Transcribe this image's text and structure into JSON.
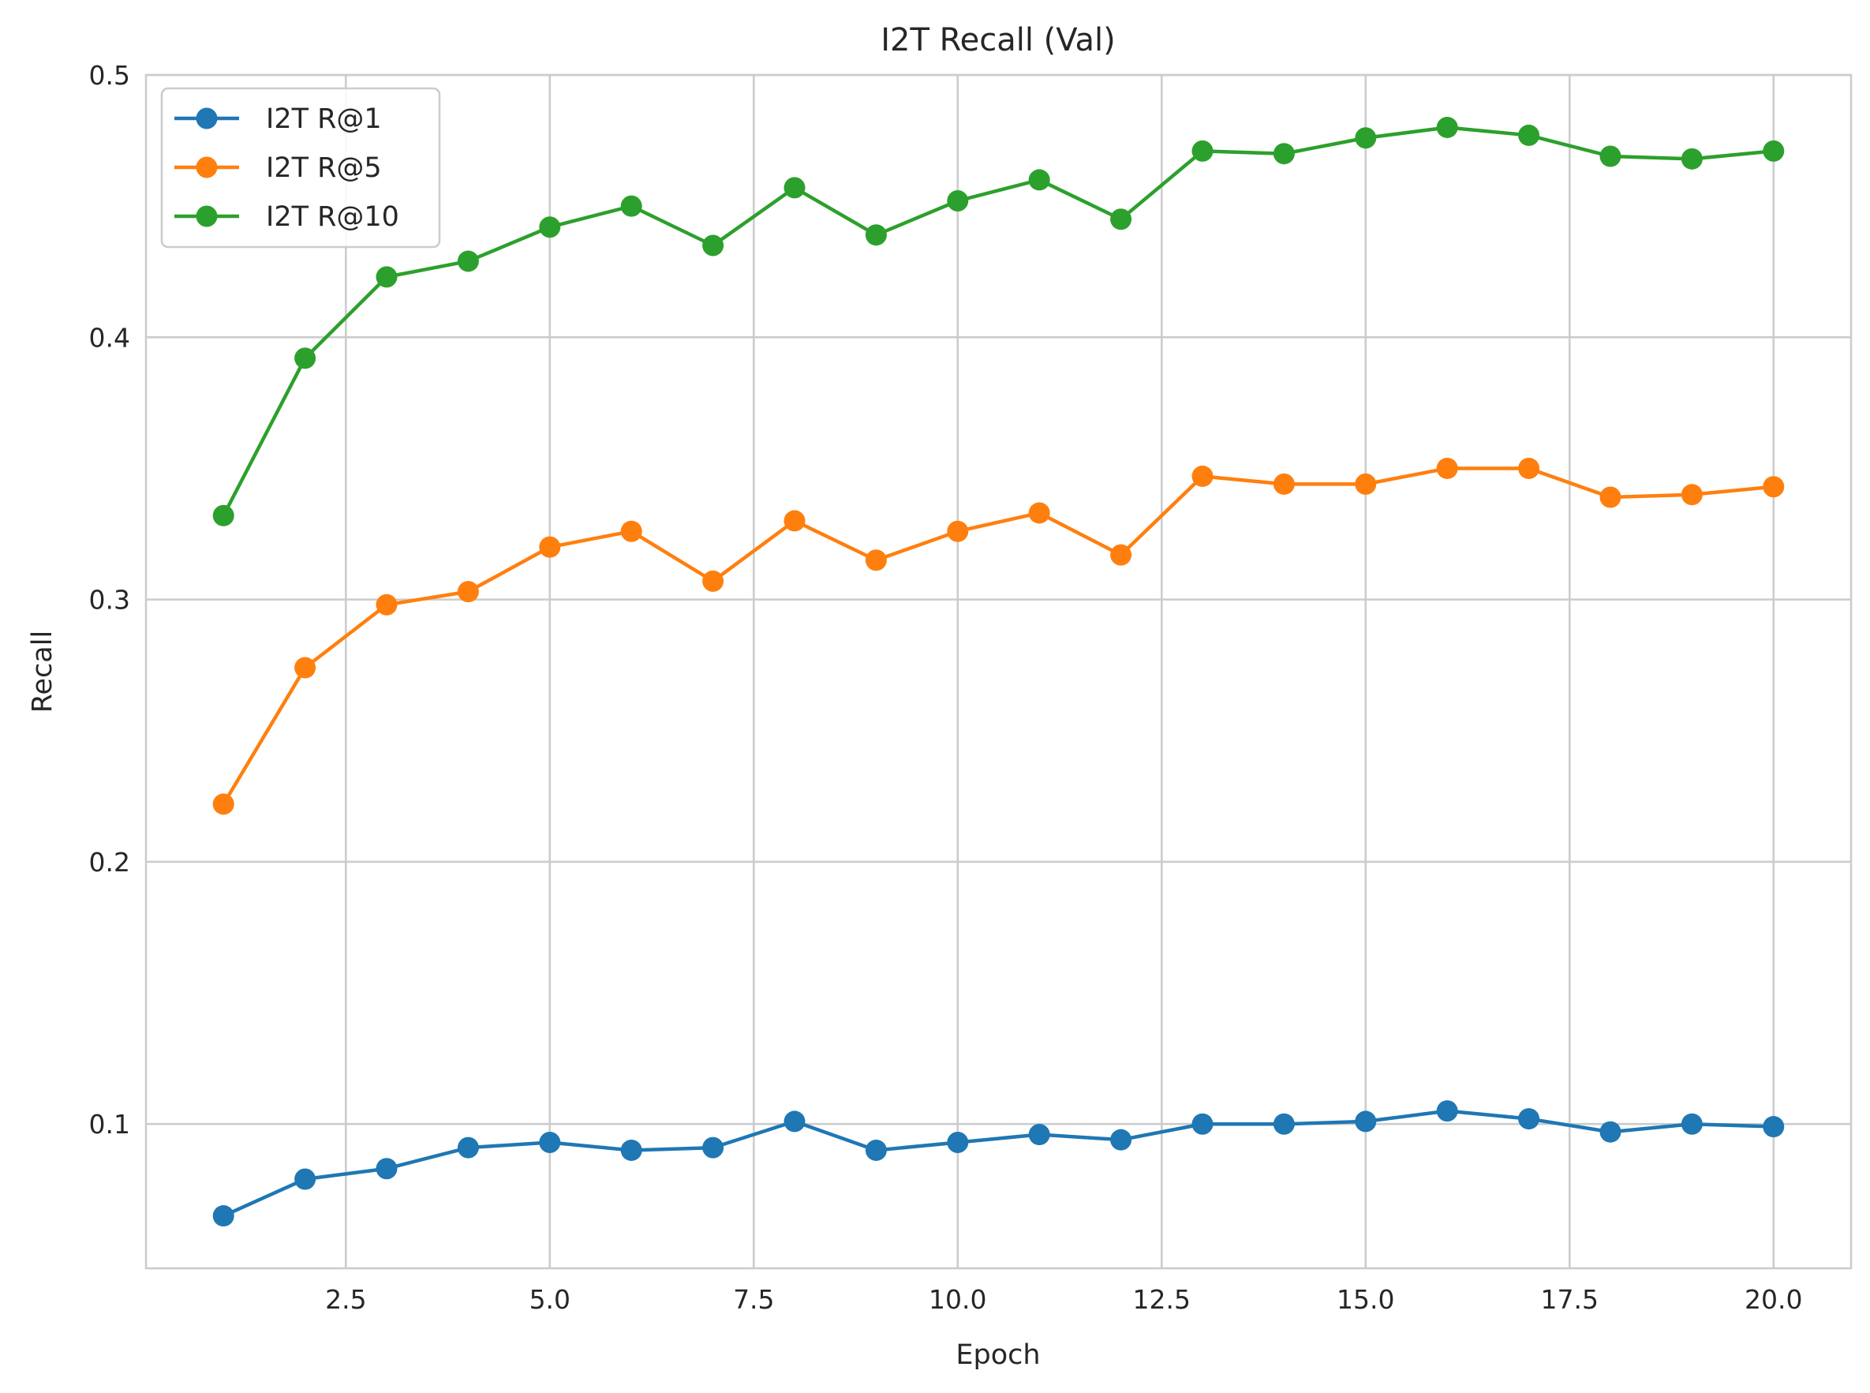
{
  "chart_data": {
    "type": "line",
    "title": "I2T Recall (Val)",
    "xlabel": "Epoch",
    "ylabel": "Recall",
    "x": [
      1,
      2,
      3,
      4,
      5,
      6,
      7,
      8,
      9,
      10,
      11,
      12,
      13,
      14,
      15,
      16,
      17,
      18,
      19,
      20
    ],
    "xlim": [
      0.05,
      20.95
    ],
    "ylim": [
      0.045,
      0.5
    ],
    "xticks": [
      2.5,
      5.0,
      7.5,
      10.0,
      12.5,
      15.0,
      17.5,
      20.0
    ],
    "xtick_labels": [
      "2.5",
      "5.0",
      "7.5",
      "10.0",
      "12.5",
      "15.0",
      "17.5",
      "20.0"
    ],
    "yticks": [
      0.1,
      0.2,
      0.3,
      0.4,
      0.5
    ],
    "ytick_labels": [
      "0.1",
      "0.2",
      "0.3",
      "0.4",
      "0.5"
    ],
    "grid": true,
    "legend_position": "top-left",
    "series": [
      {
        "name": "I2T R@1",
        "color": "#1f77b4",
        "marker": "circle",
        "values": [
          0.065,
          0.079,
          0.083,
          0.091,
          0.093,
          0.09,
          0.091,
          0.101,
          0.09,
          0.093,
          0.096,
          0.094,
          0.1,
          0.1,
          0.101,
          0.105,
          0.102,
          0.097,
          0.1,
          0.099
        ]
      },
      {
        "name": "I2T R@5",
        "color": "#ff7f0e",
        "marker": "circle",
        "values": [
          0.222,
          0.274,
          0.298,
          0.303,
          0.32,
          0.326,
          0.307,
          0.33,
          0.315,
          0.326,
          0.333,
          0.317,
          0.347,
          0.344,
          0.344,
          0.35,
          0.35,
          0.339,
          0.34,
          0.343
        ]
      },
      {
        "name": "I2T R@10",
        "color": "#2ca02c",
        "marker": "circle",
        "values": [
          0.332,
          0.392,
          0.423,
          0.429,
          0.442,
          0.45,
          0.435,
          0.457,
          0.439,
          0.452,
          0.46,
          0.445,
          0.471,
          0.47,
          0.476,
          0.48,
          0.477,
          0.469,
          0.468,
          0.471
        ]
      }
    ]
  }
}
